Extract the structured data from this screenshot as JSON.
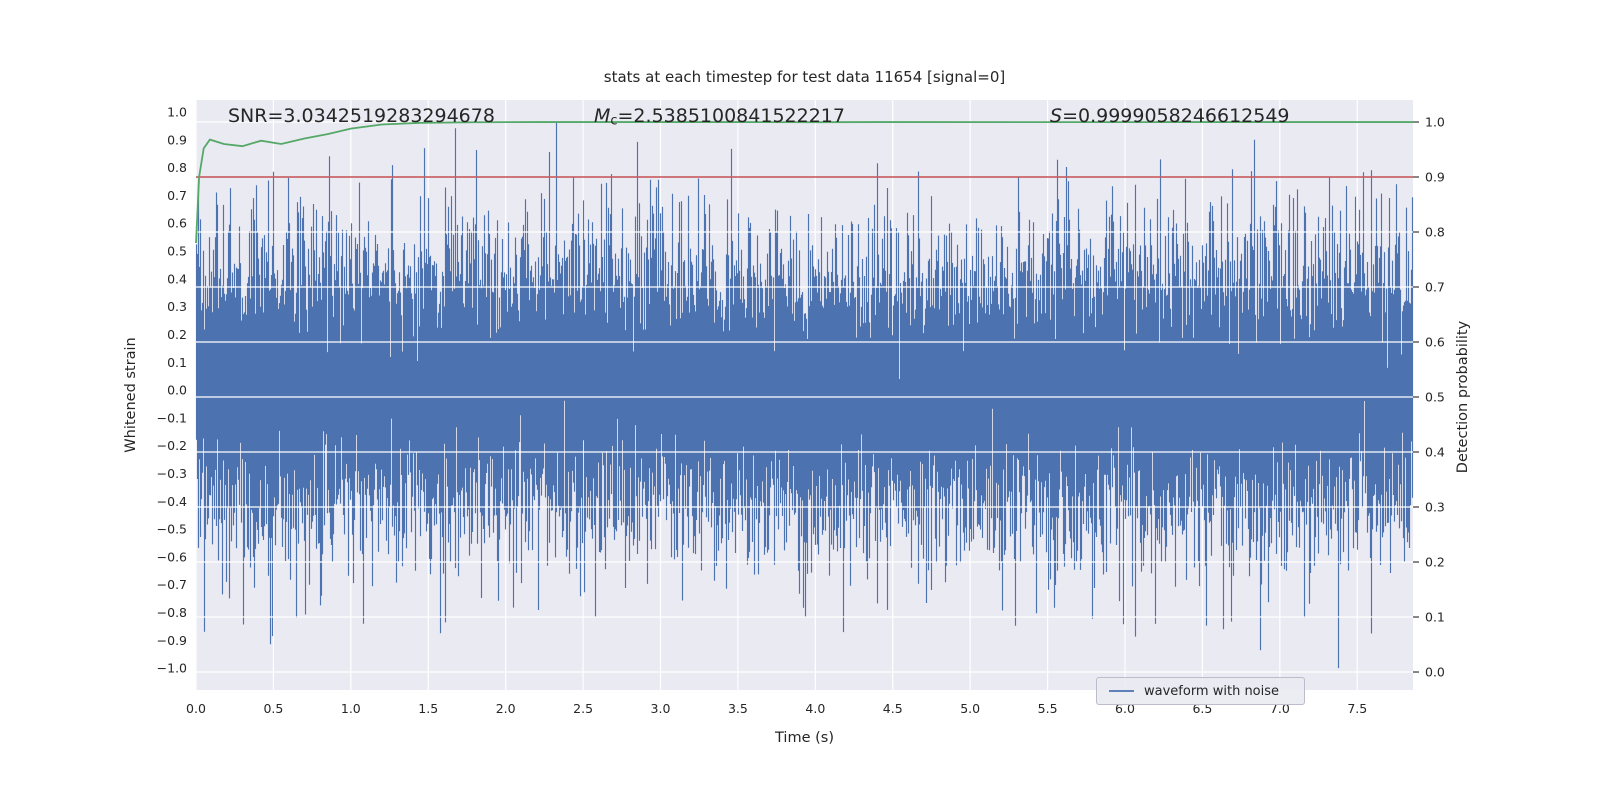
{
  "chart_data": {
    "type": "line",
    "title": "stats at each timestep for test data 11654 [signal=0]",
    "xlabel": "Time (s)",
    "ylabel_left": "Whitened strain",
    "ylabel_right": "Detection probability",
    "xlim": [
      0,
      7.86
    ],
    "ylim_left": [
      -1.0787,
      1.0432
    ],
    "ylim_right": [
      -0.0327,
      1.04
    ],
    "xticks": [
      0.0,
      0.5,
      1.0,
      1.5,
      2.0,
      2.5,
      3.0,
      3.5,
      4.0,
      4.5,
      5.0,
      5.5,
      6.0,
      6.5,
      7.0,
      7.5
    ],
    "yticks_left": [
      1.0,
      0.9,
      0.8,
      0.7,
      0.6,
      0.5,
      0.4,
      0.3,
      0.2,
      0.1,
      0.0,
      -0.1,
      -0.2,
      -0.3,
      -0.4,
      -0.5,
      -0.6,
      -0.7,
      -0.8,
      -0.9,
      -1.0
    ],
    "yticks_right": [
      1.0,
      0.9,
      0.8,
      0.7,
      0.6,
      0.5,
      0.4,
      0.3,
      0.2,
      0.1,
      0.0
    ],
    "grid": {
      "color": "#ffffff",
      "vertical": "xticks",
      "horizontal": "yticks_right"
    },
    "background": {
      "figure": "#ffffff",
      "axes": "#eaeaf2"
    },
    "text_color": "#262626",
    "annotations": [
      {
        "id": "snr",
        "text": "SNR=3.0342519283294678"
      },
      {
        "id": "chirp-mass",
        "var": "M",
        "sub": "c",
        "text": "=2.5385100841522217"
      },
      {
        "id": "significance",
        "var": "S",
        "text": "=0.9999058246612549"
      }
    ],
    "series": [
      {
        "name": "waveform with noise",
        "type": "noise_band",
        "axis": "left",
        "color": "#4C72B0",
        "noise": {
          "distribution": "gaussian",
          "sigma": 0.26,
          "samples_per_column": 14,
          "clip": [
            -1.0,
            1.0
          ],
          "seed": 11654
        }
      },
      {
        "name": "detection probability",
        "type": "line",
        "axis": "right",
        "color": "#55A868",
        "points": [
          [
            0,
            0.78
          ],
          [
            0.02,
            0.9
          ],
          [
            0.05,
            0.952
          ],
          [
            0.09,
            0.968
          ],
          [
            0.18,
            0.96
          ],
          [
            0.3,
            0.956
          ],
          [
            0.42,
            0.966
          ],
          [
            0.55,
            0.96
          ],
          [
            0.7,
            0.97
          ],
          [
            0.85,
            0.978
          ],
          [
            1.0,
            0.988
          ],
          [
            1.2,
            0.9955
          ],
          [
            1.45,
            0.9985
          ],
          [
            1.8,
            0.9996
          ],
          [
            2.2,
            0.9999
          ],
          [
            3.5,
            0.9999
          ],
          [
            4.0,
            0.9997
          ],
          [
            4.4,
            0.9999
          ],
          [
            6.0,
            0.9998
          ],
          [
            6.3,
            0.9999
          ],
          [
            7.86,
            0.9999
          ]
        ]
      },
      {
        "name": "detection threshold",
        "type": "hline",
        "axis": "right",
        "color": "#C44E52",
        "value": 0.9
      }
    ],
    "legend": {
      "position": "lower right",
      "entries": [
        {
          "label": "waveform with noise",
          "color": "#4C72B0"
        }
      ]
    }
  }
}
